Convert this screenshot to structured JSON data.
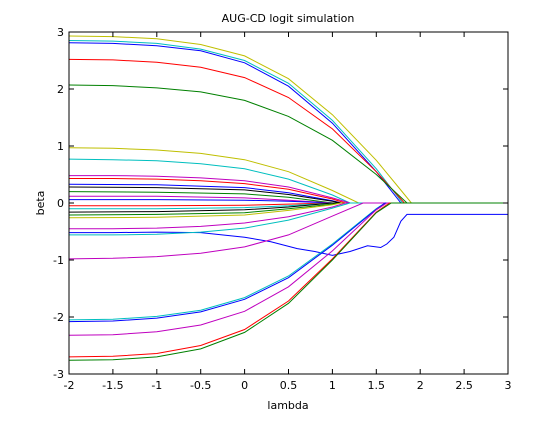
{
  "chart_data": {
    "type": "line",
    "title": "AUG-CD logit simulation",
    "xlabel": "lambda",
    "ylabel": "beta",
    "xlim": [
      -2,
      3
    ],
    "ylim": [
      -3,
      3
    ],
    "xticks": [
      -2,
      -1.5,
      -1,
      -0.5,
      0,
      0.5,
      1,
      1.5,
      2,
      2.5,
      3
    ],
    "xtick_labels": [
      "-2",
      "-1.5",
      "-1",
      "-0.5",
      "0",
      "0.5",
      "1",
      "1.5",
      "2",
      "2.5",
      "3"
    ],
    "yticks": [
      -3,
      -2,
      -1,
      0,
      1,
      2,
      3
    ],
    "ytick_labels": [
      "-3",
      "-2",
      "-1",
      "0",
      "1",
      "2",
      "3"
    ],
    "grid": false,
    "legend": "none",
    "series": [
      {
        "color": "#bfbf00",
        "x": [
          -2,
          -1.5,
          -1,
          -0.5,
          0,
          0.5,
          1,
          1.5,
          1.75,
          1.9,
          3
        ],
        "y": [
          2.93,
          2.92,
          2.88,
          2.78,
          2.58,
          2.18,
          1.55,
          0.75,
          0.28,
          0,
          0
        ]
      },
      {
        "color": "#00bfbf",
        "x": [
          -2,
          -1.5,
          -1,
          -0.5,
          0,
          0.5,
          1,
          1.5,
          1.8,
          3
        ],
        "y": [
          2.85,
          2.84,
          2.8,
          2.7,
          2.5,
          2.1,
          1.45,
          0.6,
          0,
          0
        ]
      },
      {
        "color": "#0000ff",
        "x": [
          -2,
          -1.5,
          -1,
          -0.5,
          0,
          0.5,
          1,
          1.5,
          1.78,
          3
        ],
        "y": [
          2.81,
          2.8,
          2.76,
          2.67,
          2.46,
          2.05,
          1.4,
          0.55,
          0,
          0
        ]
      },
      {
        "color": "#ff0000",
        "x": [
          -2,
          -1.5,
          -1,
          -0.5,
          0,
          0.5,
          1,
          1.5,
          1.82,
          3
        ],
        "y": [
          2.52,
          2.51,
          2.47,
          2.38,
          2.2,
          1.85,
          1.3,
          0.55,
          0,
          0
        ]
      },
      {
        "color": "#008000",
        "x": [
          -2,
          -1.5,
          -1,
          -0.5,
          0,
          0.5,
          1,
          1.5,
          1.85,
          3
        ],
        "y": [
          2.07,
          2.06,
          2.02,
          1.95,
          1.8,
          1.52,
          1.1,
          0.5,
          0,
          0
        ]
      },
      {
        "color": "#bfbf00",
        "x": [
          -2,
          -1.5,
          -1,
          -0.5,
          0,
          0.5,
          1,
          1.3,
          3
        ],
        "y": [
          0.97,
          0.96,
          0.93,
          0.87,
          0.76,
          0.55,
          0.22,
          0,
          0
        ]
      },
      {
        "color": "#00bfbf",
        "x": [
          -2,
          -1.5,
          -1,
          -0.5,
          0,
          0.5,
          1,
          1.2,
          3
        ],
        "y": [
          0.77,
          0.76,
          0.74,
          0.69,
          0.6,
          0.42,
          0.14,
          0,
          0
        ]
      },
      {
        "color": "#bf00bf",
        "x": [
          -2,
          -1.5,
          -1,
          -0.5,
          0,
          0.5,
          1,
          1.2,
          3
        ],
        "y": [
          0.48,
          0.48,
          0.47,
          0.44,
          0.39,
          0.28,
          0.09,
          0,
          0
        ]
      },
      {
        "color": "#ff0000",
        "x": [
          -2,
          -1.5,
          -1,
          -0.5,
          0,
          0.5,
          1,
          1.15,
          3
        ],
        "y": [
          0.43,
          0.43,
          0.42,
          0.39,
          0.34,
          0.24,
          0.07,
          0,
          0
        ]
      },
      {
        "color": "#0000ff",
        "x": [
          -2,
          -1,
          0,
          0.5,
          1,
          1.1,
          3
        ],
        "y": [
          0.33,
          0.32,
          0.27,
          0.18,
          0.04,
          0,
          0
        ]
      },
      {
        "color": "#000000",
        "x": [
          -2,
          -1,
          0,
          0.5,
          1,
          1.1,
          3
        ],
        "y": [
          0.28,
          0.27,
          0.23,
          0.15,
          0.03,
          0,
          0
        ]
      },
      {
        "color": "#008000",
        "x": [
          -2,
          -1,
          0,
          0.5,
          1,
          3
        ],
        "y": [
          0.2,
          0.19,
          0.16,
          0.1,
          0,
          0
        ]
      },
      {
        "color": "#bf00bf",
        "x": [
          -2,
          -1,
          0,
          0.5,
          1,
          3
        ],
        "y": [
          0.12,
          0.12,
          0.09,
          0.05,
          0,
          0
        ]
      },
      {
        "color": "#0000ff",
        "x": [
          -2,
          -1,
          0,
          0.5,
          1,
          3
        ],
        "y": [
          0.06,
          0.06,
          0.05,
          0.03,
          0,
          0
        ]
      },
      {
        "color": "#ff0000",
        "x": [
          -2,
          -1,
          0,
          0.5,
          1,
          3
        ],
        "y": [
          -0.05,
          -0.05,
          -0.04,
          -0.02,
          0,
          0
        ]
      },
      {
        "color": "#00bfbf",
        "x": [
          -2,
          -1,
          0,
          0.5,
          1,
          3
        ],
        "y": [
          -0.1,
          -0.1,
          -0.08,
          -0.05,
          0,
          0
        ]
      },
      {
        "color": "#000000",
        "x": [
          -2,
          -1,
          0,
          0.5,
          1,
          3
        ],
        "y": [
          -0.16,
          -0.15,
          -0.12,
          -0.07,
          0,
          0
        ]
      },
      {
        "color": "#008000",
        "x": [
          -2,
          -1,
          0,
          0.5,
          1,
          1.1,
          3
        ],
        "y": [
          -0.21,
          -0.2,
          -0.17,
          -0.1,
          -0.02,
          0,
          0
        ]
      },
      {
        "color": "#bfbf00",
        "x": [
          -2,
          -1,
          0,
          0.5,
          1,
          1.1,
          3
        ],
        "y": [
          -0.26,
          -0.25,
          -0.21,
          -0.13,
          -0.03,
          0,
          0
        ]
      },
      {
        "color": "#bf00bf",
        "x": [
          -2,
          -1.5,
          -1,
          -0.5,
          0,
          0.5,
          1,
          1.15,
          3
        ],
        "y": [
          -0.45,
          -0.45,
          -0.44,
          -0.41,
          -0.35,
          -0.24,
          -0.07,
          0,
          0
        ]
      },
      {
        "color": "#0000ff",
        "x": [
          -2,
          -1.5,
          -1,
          -0.5,
          0,
          0.3,
          0.6,
          0.8,
          1.0,
          1.2,
          1.4,
          1.55,
          1.62,
          1.7,
          1.78,
          1.85,
          3
        ],
        "y": [
          -0.52,
          -0.52,
          -0.51,
          -0.52,
          -0.6,
          -0.68,
          -0.8,
          -0.85,
          -0.92,
          -0.85,
          -0.75,
          -0.78,
          -0.72,
          -0.6,
          -0.32,
          -0.2,
          -0.2
        ]
      },
      {
        "color": "#00bfbf",
        "x": [
          -2,
          -1.5,
          -1,
          -0.5,
          0,
          0.5,
          1,
          1.2,
          3
        ],
        "y": [
          -0.56,
          -0.56,
          -0.55,
          -0.51,
          -0.44,
          -0.3,
          -0.09,
          0,
          0
        ]
      },
      {
        "color": "#bf00bf",
        "x": [
          -2,
          -1.5,
          -1,
          -0.5,
          0,
          0.5,
          1,
          1.35,
          3
        ],
        "y": [
          -0.98,
          -0.97,
          -0.94,
          -0.88,
          -0.77,
          -0.56,
          -0.23,
          0,
          0
        ]
      },
      {
        "color": "#00bfbf",
        "x": [
          -2,
          -1.5,
          -1,
          -0.5,
          0,
          0.5,
          1,
          1.5,
          1.6,
          3
        ],
        "y": [
          -2.05,
          -2.04,
          -1.99,
          -1.88,
          -1.66,
          -1.28,
          -0.72,
          -0.1,
          0,
          0
        ]
      },
      {
        "color": "#0000ff",
        "x": [
          -2,
          -1.5,
          -1,
          -0.5,
          0,
          0.5,
          1,
          1.5,
          1.6,
          3
        ],
        "y": [
          -2.08,
          -2.07,
          -2.02,
          -1.91,
          -1.69,
          -1.31,
          -0.74,
          -0.11,
          0,
          0
        ]
      },
      {
        "color": "#bf00bf",
        "x": [
          -2,
          -1.5,
          -1,
          -0.5,
          0,
          0.5,
          1,
          1.5,
          1.62,
          3
        ],
        "y": [
          -2.32,
          -2.31,
          -2.26,
          -2.14,
          -1.9,
          -1.47,
          -0.84,
          -0.12,
          0,
          0
        ]
      },
      {
        "color": "#ff0000",
        "x": [
          -2,
          -1.5,
          -1,
          -0.5,
          0,
          0.5,
          1,
          1.5,
          1.65,
          3
        ],
        "y": [
          -2.7,
          -2.69,
          -2.64,
          -2.5,
          -2.22,
          -1.72,
          -0.98,
          -0.16,
          0,
          0
        ]
      },
      {
        "color": "#008000",
        "x": [
          -2,
          -1.5,
          -1,
          -0.5,
          0,
          0.5,
          1,
          1.5,
          1.67,
          3
        ],
        "y": [
          -2.76,
          -2.75,
          -2.7,
          -2.56,
          -2.27,
          -1.76,
          -1.0,
          -0.17,
          0,
          0
        ]
      }
    ]
  }
}
